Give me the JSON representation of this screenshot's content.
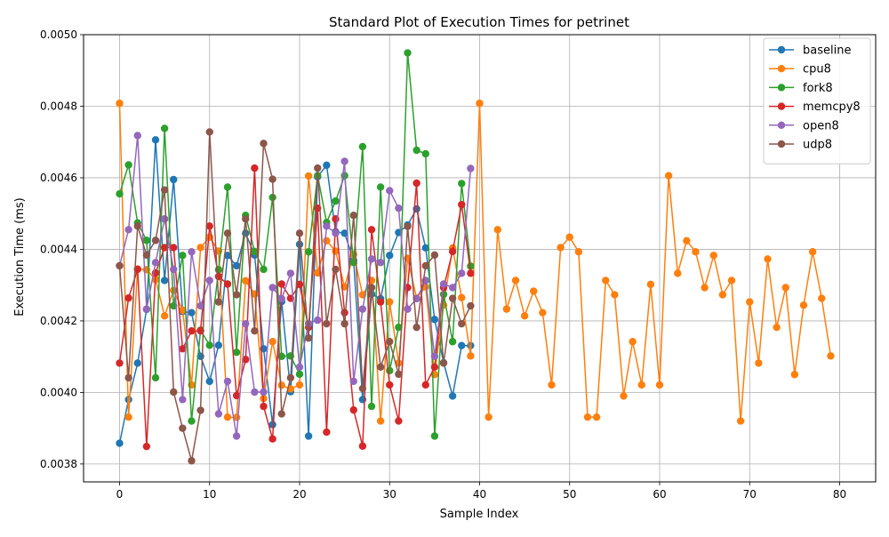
{
  "chart_data": {
    "type": "line",
    "title": "Standard Plot of Execution Times for petrinet",
    "xlabel": "Sample Index",
    "ylabel": "Execution Time (ms)",
    "xlim": [
      -4,
      84
    ],
    "ylim": [
      0.00375,
      0.005
    ],
    "xticks": [
      "0",
      "10",
      "20",
      "30",
      "40",
      "50",
      "60",
      "70",
      "80"
    ],
    "yticks": [
      "0.0038",
      "0.0040",
      "0.0042",
      "0.0044",
      "0.0046",
      "0.0048",
      "0.0050"
    ],
    "grid": true,
    "legend_position": "upper right",
    "series": [
      {
        "name": "baseline",
        "color": "#1f77b4",
        "values": [
          0.003858,
          0.00398,
          0.004082,
          0.004232,
          0.004706,
          0.004313,
          0.004595,
          0.004226,
          0.004223,
          0.004101,
          0.004031,
          0.004132,
          0.004383,
          0.004354,
          0.004445,
          0.004384,
          0.004122,
          0.00391,
          0.004254,
          0.004002,
          0.004414,
          0.003878,
          0.004603,
          0.004635,
          0.004449,
          0.004445,
          0.004369,
          0.00398,
          0.004275,
          0.004262,
          0.004383,
          0.004447,
          0.004468,
          0.004513,
          0.004404,
          0.004204,
          0.004083,
          0.00399,
          0.004131,
          0.004131
        ]
      },
      {
        "name": "cpu8",
        "color": "#ff7f0e",
        "values": [
          0.004808,
          0.003931,
          0.004345,
          0.004343,
          0.004316,
          0.004214,
          0.004285,
          0.00423,
          0.004021,
          0.004405,
          0.004434,
          0.004395,
          0.003931,
          0.00393,
          0.004312,
          0.004275,
          0.003983,
          0.004142,
          0.00402,
          0.00401,
          0.004021,
          0.004605,
          0.004334,
          0.004424,
          0.004395,
          0.004295,
          0.004386,
          0.004273,
          0.004313,
          0.00392,
          0.004253,
          0.004082,
          0.004375,
          0.004264,
          0.004295,
          0.00405,
          0.004244,
          0.004404,
          0.004265,
          0.004102,
          0.004808,
          0.003931,
          0.004455,
          0.004233,
          0.004313,
          0.004214,
          0.004283,
          0.004223,
          0.004021,
          0.004405,
          0.004434,
          0.004393,
          0.003931,
          0.003931,
          0.004313,
          0.004273,
          0.00399,
          0.004142,
          0.004021,
          0.004302,
          0.004021,
          0.004606,
          0.004333,
          0.004424,
          0.004393,
          0.004293,
          0.004383,
          0.004273,
          0.004313,
          0.00392,
          0.004253,
          0.004082,
          0.004373,
          0.004182,
          0.004293,
          0.00405,
          0.004244,
          0.004393,
          0.004263,
          0.004102
        ]
      },
      {
        "name": "fork8",
        "color": "#2ca02c",
        "values": [
          0.004555,
          0.004636,
          0.004474,
          0.004425,
          0.004041,
          0.004738,
          0.004242,
          0.004383,
          0.00392,
          0.004174,
          0.004132,
          0.004343,
          0.004574,
          0.004112,
          0.004495,
          0.004394,
          0.004344,
          0.004545,
          0.004101,
          0.004102,
          0.004051,
          0.004393,
          0.004606,
          0.004475,
          0.004535,
          0.004606,
          0.004363,
          0.004687,
          0.003961,
          0.004574,
          0.004061,
          0.004182,
          0.004949,
          0.004677,
          0.004667,
          0.003878,
          0.004274,
          0.004142,
          0.004584,
          0.004353
        ]
      },
      {
        "name": "memcpy8",
        "color": "#d62728",
        "values": [
          0.004082,
          0.004264,
          0.004344,
          0.003849,
          0.004334,
          0.004405,
          0.004405,
          0.004122,
          0.004172,
          0.004172,
          0.004465,
          0.004324,
          0.004303,
          0.003991,
          0.004092,
          0.004627,
          0.003961,
          0.00387,
          0.004303,
          0.004263,
          0.004302,
          0.004182,
          0.004515,
          0.003889,
          0.004485,
          0.004223,
          0.003951,
          0.00385,
          0.004455,
          0.004253,
          0.004021,
          0.00392,
          0.004293,
          0.004585,
          0.004021,
          0.004071,
          0.004293,
          0.004394,
          0.004525,
          0.004333
        ]
      },
      {
        "name": "open8",
        "color": "#9467bd",
        "values": [
          0.004354,
          0.004455,
          0.004718,
          0.004233,
          0.004363,
          0.004485,
          0.004344,
          0.00398,
          0.004393,
          0.004242,
          0.004313,
          0.00394,
          0.004031,
          0.003878,
          0.004192,
          0.004001,
          0.004001,
          0.004293,
          0.004262,
          0.004333,
          0.004071,
          0.004192,
          0.004202,
          0.004465,
          0.004445,
          0.004646,
          0.004031,
          0.004233,
          0.004373,
          0.004363,
          0.004564,
          0.004515,
          0.004233,
          0.004262,
          0.004313,
          0.004101,
          0.004303,
          0.004293,
          0.004333,
          0.004626
        ]
      },
      {
        "name": "udp8",
        "color": "#8c564b",
        "values": [
          0.004354,
          0.004041,
          0.004465,
          0.004384,
          0.004425,
          0.004566,
          0.004001,
          0.0039,
          0.003809,
          0.00395,
          0.004728,
          0.004253,
          0.004445,
          0.004273,
          0.004485,
          0.004172,
          0.004696,
          0.004596,
          0.00394,
          0.004041,
          0.004445,
          0.004152,
          0.004627,
          0.004192,
          0.004344,
          0.004192,
          0.004495,
          0.004011,
          0.004293,
          0.004071,
          0.004142,
          0.004051,
          0.004464,
          0.004182,
          0.004354,
          0.004384,
          0.004082,
          0.004263,
          0.004192,
          0.004242
        ]
      }
    ]
  }
}
